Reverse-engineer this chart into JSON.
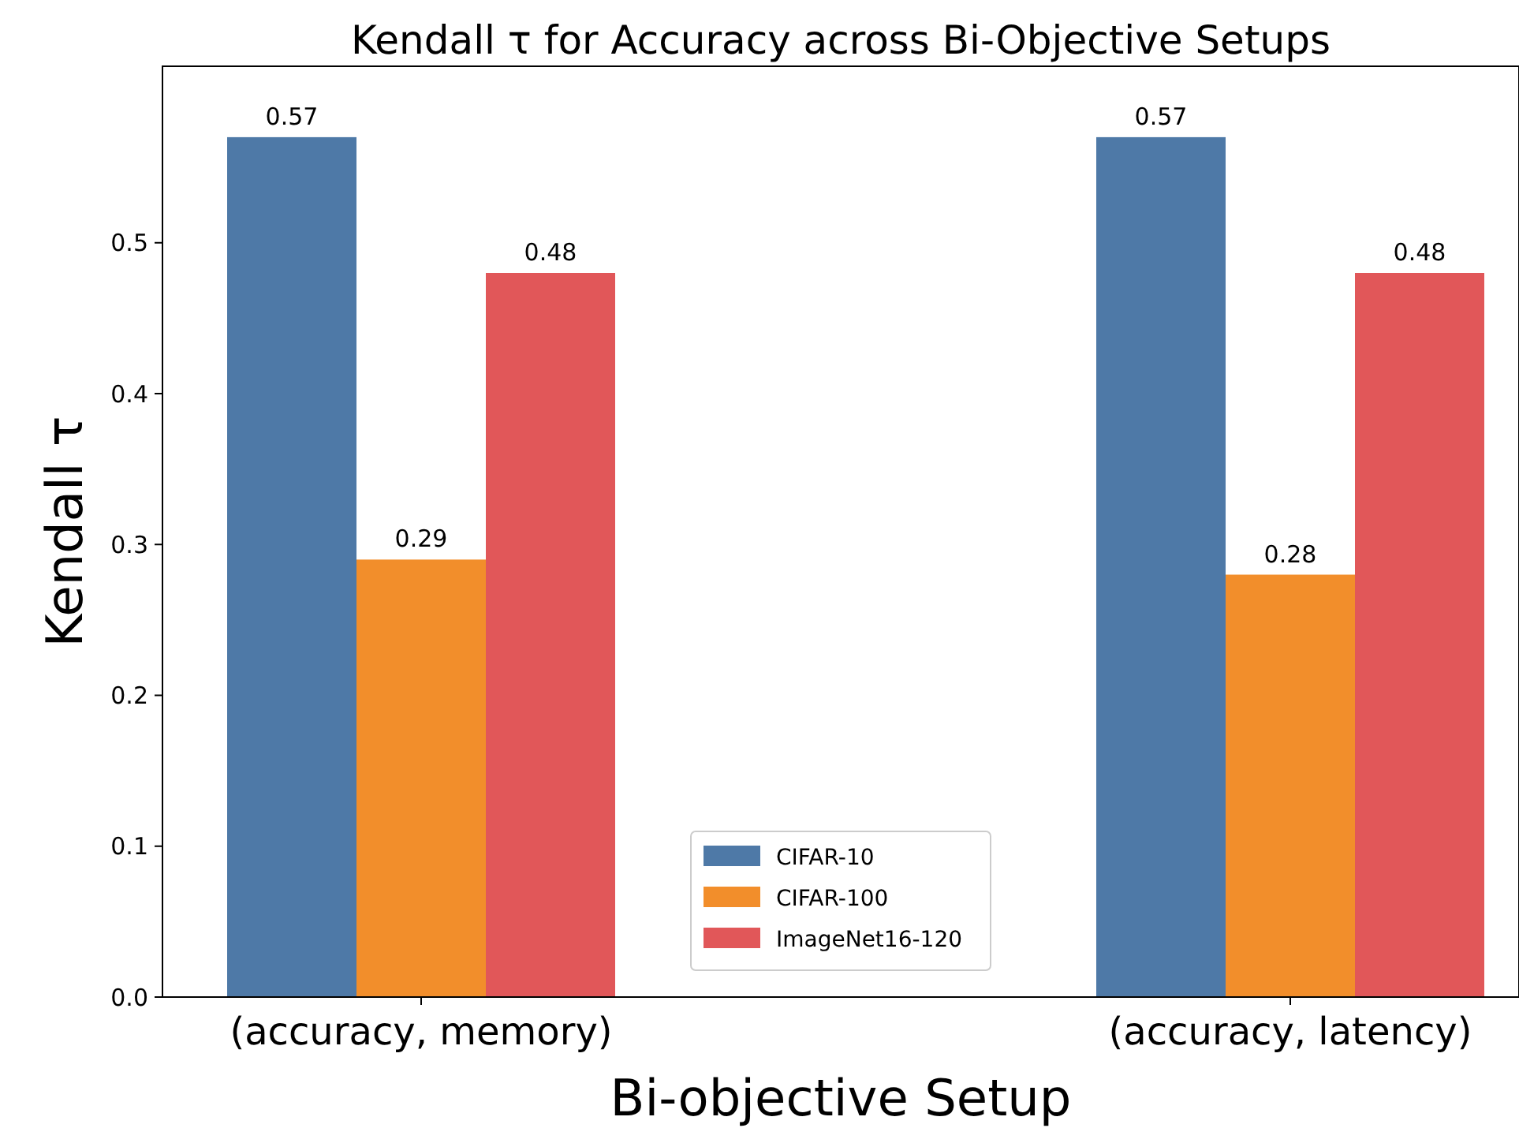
{
  "chart_data": {
    "type": "bar",
    "title": "Kendall τ for Accuracy across Bi-Objective Setups",
    "xlabel": "Bi-objective Setup",
    "ylabel": "Kendall τ",
    "categories": [
      "(accuracy, memory)",
      "(accuracy, latency)"
    ],
    "series": [
      {
        "name": "CIFAR-10",
        "color": "#4e79a7",
        "values": [
          0.57,
          0.57
        ]
      },
      {
        "name": "CIFAR-100",
        "color": "#f28e2b",
        "values": [
          0.29,
          0.28
        ]
      },
      {
        "name": "ImageNet16-120",
        "color": "#e15759",
        "values": [
          0.48,
          0.48
        ]
      }
    ],
    "ylim": [
      0,
      0.617
    ],
    "yticks": [
      {
        "value": 0,
        "label": "0.0"
      },
      0.1,
      0.2,
      0.3,
      0.4,
      0.5
    ],
    "data_labels": true,
    "legend": "bottom",
    "grid": false
  }
}
